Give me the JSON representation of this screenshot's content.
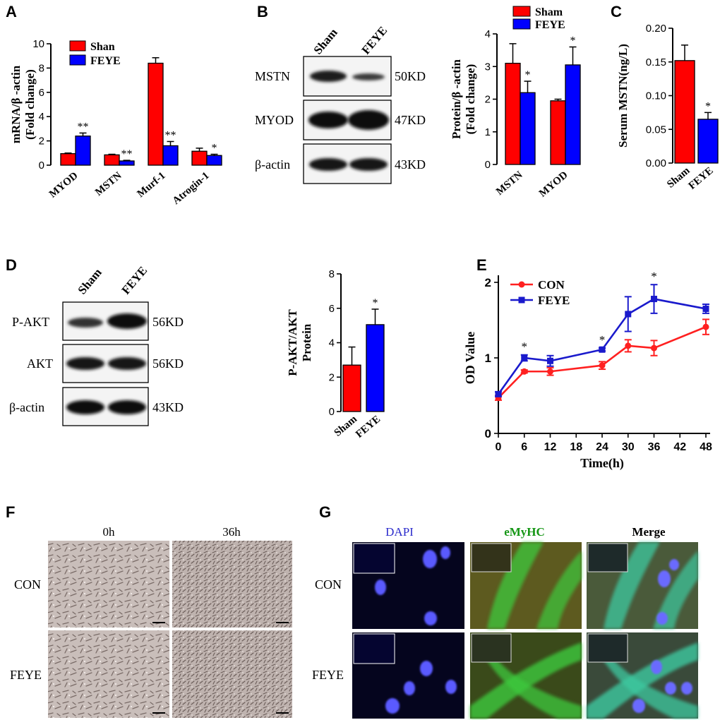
{
  "colors": {
    "red": "#ff0000",
    "blue": "#0000ff",
    "series_red": "#ff2020",
    "series_blue": "#1a1acc"
  },
  "panels": {
    "A": {
      "letter": "A"
    },
    "B": {
      "letter": "B"
    },
    "C": {
      "letter": "C"
    },
    "D": {
      "letter": "D"
    },
    "E": {
      "letter": "E"
    },
    "F": {
      "letter": "F"
    },
    "G": {
      "letter": "G"
    }
  },
  "blotB": {
    "lanes": [
      "Sham",
      "FEYE"
    ],
    "rows": [
      {
        "label": "MSTN",
        "size": "50KD"
      },
      {
        "label": "MYOD",
        "size": "47KD"
      },
      {
        "label": "β-actin",
        "size": "43KD"
      }
    ]
  },
  "blotD": {
    "lanes": [
      "Sham",
      "FEYE"
    ],
    "rows": [
      {
        "label": "P-AKT",
        "size": "56KD"
      },
      {
        "label": "AKT",
        "size": "56KD"
      },
      {
        "label": "β-actin",
        "size": "43KD"
      }
    ]
  },
  "panelF": {
    "cols": [
      "0h",
      "36h"
    ],
    "rows": [
      "CON",
      "FEYE"
    ]
  },
  "panelG": {
    "cols": [
      "DAPI",
      "eMyHC",
      "Merge"
    ],
    "rows": [
      "CON",
      "FEYE"
    ],
    "col_colors": [
      "#2b2bcc",
      "#149614",
      "#000000"
    ]
  },
  "chart_data": [
    {
      "panel": "A",
      "type": "bar",
      "categories": [
        "MYOD",
        "MSTN",
        "Murf-1",
        "Atrogin-1"
      ],
      "series": [
        {
          "name": "Shan",
          "color": "#ff0000",
          "values": [
            0.95,
            0.85,
            8.4,
            1.15
          ],
          "errors": [
            0.05,
            0.05,
            0.45,
            0.25
          ]
        },
        {
          "name": "FEYE",
          "color": "#0000ff",
          "values": [
            2.4,
            0.35,
            1.6,
            0.8
          ],
          "errors": [
            0.25,
            0.05,
            0.35,
            0.1
          ]
        }
      ],
      "annotations": [
        [
          "",
          "**"
        ],
        [
          "",
          "**"
        ],
        [
          "",
          "**"
        ],
        [
          "",
          "*"
        ]
      ],
      "ylabel": [
        "mRNA/β -actin",
        "(Fold change)"
      ],
      "ylim": [
        0,
        10
      ],
      "yticks": [
        0,
        2,
        4,
        6,
        8,
        10
      ],
      "legend": "top-right"
    },
    {
      "panel": "B",
      "type": "bar",
      "categories": [
        "MSTN",
        "MYOD"
      ],
      "series": [
        {
          "name": "Sham",
          "color": "#ff0000",
          "values": [
            3.1,
            1.95
          ],
          "errors": [
            0.6,
            0.05
          ]
        },
        {
          "name": "FEYE",
          "color": "#0000ff",
          "values": [
            2.2,
            3.05
          ],
          "errors": [
            0.35,
            0.55
          ]
        }
      ],
      "annotations": [
        [
          "",
          "*"
        ],
        [
          "",
          "*"
        ]
      ],
      "ylabel": [
        "Protein/β -actin",
        "(Fold change)"
      ],
      "ylim": [
        0,
        4
      ],
      "yticks": [
        0,
        1,
        2,
        3,
        4
      ],
      "legend": "top"
    },
    {
      "panel": "C",
      "type": "bar",
      "categories": [
        "Sham",
        "FEYE"
      ],
      "series": [
        {
          "name": "",
          "values": [
            0.152,
            0.065
          ],
          "errors": [
            0.023,
            0.01
          ],
          "colors": [
            "#ff0000",
            "#0000ff"
          ]
        }
      ],
      "annotations": [
        [
          "",
          "*"
        ]
      ],
      "ylabel": [
        "Serum MSTN(ng/L)"
      ],
      "ylim": [
        0,
        0.2
      ],
      "yticks": [
        "0.00",
        "0.05",
        "0.10",
        "0.15",
        "0.20"
      ]
    },
    {
      "panel": "D",
      "type": "bar",
      "categories": [
        "Sham",
        "FEYE"
      ],
      "series": [
        {
          "name": "",
          "values": [
            2.7,
            5.05
          ],
          "errors": [
            1.05,
            0.9
          ],
          "colors": [
            "#ff0000",
            "#0000ff"
          ]
        }
      ],
      "annotations": [
        [
          "",
          "*"
        ]
      ],
      "ylabel": [
        "P-AKT/AKT",
        "Protein"
      ],
      "ylim": [
        0,
        8
      ],
      "yticks": [
        0,
        2,
        4,
        6,
        8
      ]
    },
    {
      "panel": "E",
      "type": "line",
      "x": [
        0,
        6,
        12,
        24,
        30,
        36,
        48
      ],
      "xticks": [
        0,
        6,
        12,
        18,
        24,
        30,
        36,
        42,
        48
      ],
      "series": [
        {
          "name": "CON",
          "color": "#ff2020",
          "marker": "circle",
          "values": [
            0.47,
            0.82,
            0.82,
            0.9,
            1.16,
            1.13,
            1.41
          ],
          "errors": [
            0.03,
            0.02,
            0.05,
            0.05,
            0.08,
            0.1,
            0.1
          ]
        },
        {
          "name": "FEYE",
          "color": "#1a1acc",
          "marker": "square",
          "values": [
            0.52,
            1.0,
            0.96,
            1.11,
            1.58,
            1.78,
            1.65
          ],
          "errors": [
            0.03,
            0.04,
            0.07,
            0.02,
            0.23,
            0.19,
            0.06
          ]
        }
      ],
      "annotations": [
        {
          "x": 6,
          "text": "*"
        },
        {
          "x": 24,
          "text": "*"
        },
        {
          "x": 36,
          "text": "*"
        }
      ],
      "xlabel": "Time(h)",
      "ylabel": "OD Value",
      "ylim": [
        0,
        2
      ],
      "yticks": [
        0,
        1,
        2
      ],
      "xlim": [
        0,
        48
      ],
      "legend": "top-left"
    }
  ]
}
